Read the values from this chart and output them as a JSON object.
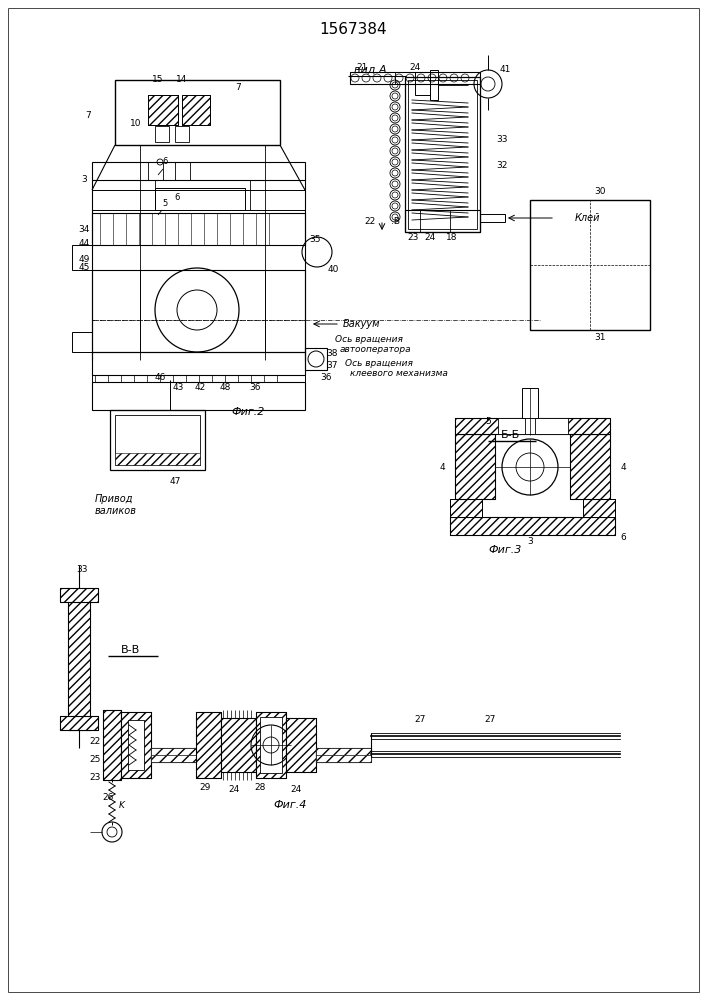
{
  "title": "1567384",
  "bg_color": "#ffffff",
  "line_color": "#000000",
  "fig_labels": {
    "fig2": "Фиг.2",
    "fig3": "Фиг.3",
    "fig4": "Фиг.4",
    "vid_a": "вид A",
    "bb": "Б-Б",
    "vv": "В-В"
  },
  "texts": {
    "vakuum": "Вакуум",
    "privod": "Привод\nваликов",
    "os1": "Ось вращения",
    "os1b": "автооператора",
    "os2": "Ось вращения",
    "os2b": "клеевого механизма",
    "klej": "Клей"
  }
}
